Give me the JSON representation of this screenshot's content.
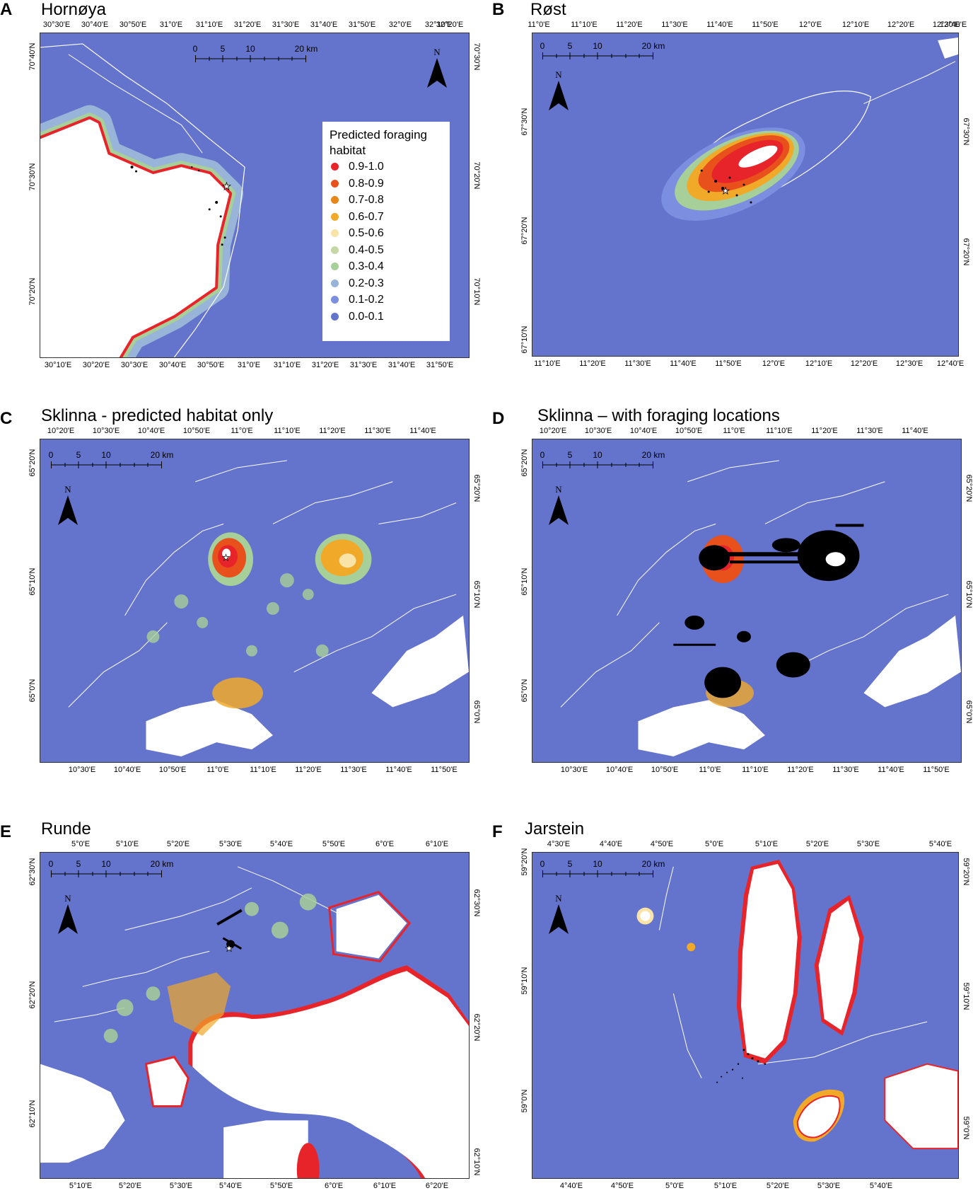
{
  "legend": {
    "title": "Predicted foraging habitat",
    "items": [
      {
        "label": "0.9-1.0",
        "color": "#e8242b"
      },
      {
        "label": "0.8-0.9",
        "color": "#e8501c"
      },
      {
        "label": "0.7-0.8",
        "color": "#e8861a"
      },
      {
        "label": "0.6-0.7",
        "color": "#f0a929"
      },
      {
        "label": "0.5-0.6",
        "color": "#fae3a6"
      },
      {
        "label": "0.4-0.5",
        "color": "#c6d8a6"
      },
      {
        "label": "0.3-0.4",
        "color": "#a7cf99"
      },
      {
        "label": "0.2-0.3",
        "color": "#98b4d8"
      },
      {
        "label": "0.1-0.2",
        "color": "#7b8ee0"
      },
      {
        "label": "0.0-0.1",
        "color": "#6474cc"
      }
    ]
  },
  "scalebar_labels": [
    "0",
    "5",
    "10",
    "20 km"
  ],
  "north_label": "N",
  "colors": {
    "sea": "#6474cc",
    "land": "#ffffff",
    "locations": "#000000"
  },
  "panels": [
    {
      "letter": "A",
      "title": "Hornøya",
      "top_ticks": [
        "30°30'E",
        "30°40'E",
        "30°50'E",
        "31°0'E",
        "31°10'E",
        "31°20'E",
        "31°30'E",
        "31°40'E",
        "31°50'E",
        "32°0'E",
        "32°10'E",
        "32°20'E"
      ],
      "bottom_ticks": [
        "30°10'E",
        "30°20'E",
        "30°30'E",
        "30°40'E",
        "30°50'E",
        "31°0'E",
        "31°10'E",
        "31°20'E",
        "31°30'E",
        "31°40'E",
        "31°50'E"
      ],
      "left_ticks": [
        "70°40'N",
        "70°30'N",
        "70°20'N"
      ],
      "right_ticks": [
        "70°30'N",
        "70°20'N",
        "70°10'N"
      ]
    },
    {
      "letter": "B",
      "title": "Røst",
      "top_ticks": [
        "11°0'E",
        "11°10'E",
        "11°20'E",
        "11°30'E",
        "11°40'E",
        "11°50'E",
        "12°0'E",
        "12°10'E",
        "12°20'E",
        "12°30'E",
        "12°40'E"
      ],
      "bottom_ticks": [
        "11°10'E",
        "11°20'E",
        "11°30'E",
        "11°40'E",
        "11°50'E",
        "12°0'E",
        "12°10'E",
        "12°20'E",
        "12°30'E",
        "12°40'E"
      ],
      "left_ticks": [
        "67°30'N",
        "67°20'N",
        "67°10'N"
      ],
      "right_ticks": [
        "67°30'N",
        "67°20'N"
      ]
    },
    {
      "letter": "C",
      "title": "Sklinna - predicted habitat only",
      "top_ticks": [
        "10°20'E",
        "10°30'E",
        "10°40'E",
        "10°50'E",
        "11°0'E",
        "11°10'E",
        "11°20'E",
        "11°30'E",
        "11°40'E"
      ],
      "bottom_ticks": [
        "10°30'E",
        "10°40'E",
        "10°50'E",
        "11°0'E",
        "11°10'E",
        "11°20'E",
        "11°30'E",
        "11°40'E",
        "11°50'E"
      ],
      "left_ticks": [
        "65°20'N",
        "65°10'N",
        "65°0'N"
      ],
      "right_ticks": [
        "65°20'N",
        "65°10'N",
        "65°0'N"
      ]
    },
    {
      "letter": "D",
      "title": "Sklinna – with foraging locations",
      "top_ticks": [
        "10°20'E",
        "10°30'E",
        "10°40'E",
        "10°50'E",
        "11°0'E",
        "11°10'E",
        "11°20'E",
        "11°30'E",
        "11°40'E"
      ],
      "bottom_ticks": [
        "10°30'E",
        "10°40'E",
        "10°50'E",
        "11°0'E",
        "11°10'E",
        "11°20'E",
        "11°30'E",
        "11°40'E",
        "11°50'E"
      ],
      "left_ticks": [
        "65°20'N",
        "65°10'N",
        "65°0'N"
      ],
      "right_ticks": [
        "65°20'N",
        "65°10'N",
        "65°0'N"
      ]
    },
    {
      "letter": "E",
      "title": "Runde",
      "top_ticks": [
        "5°0'E",
        "5°10'E",
        "5°20'E",
        "5°30'E",
        "5°40'E",
        "5°50'E",
        "6°0'E",
        "6°10'E"
      ],
      "bottom_ticks": [
        "5°10'E",
        "5°20'E",
        "5°30'E",
        "5°40'E",
        "5°50'E",
        "6°0'E",
        "6°10'E",
        "6°20'E"
      ],
      "left_ticks": [
        "62°30'N",
        "62°20'N",
        "62°10'N"
      ],
      "right_ticks": [
        "62°30'N",
        "62°20'N",
        "62°10'N"
      ]
    },
    {
      "letter": "F",
      "title": "Jarstein",
      "top_ticks": [
        "4°30'E",
        "4°40'E",
        "4°50'E",
        "5°0'E",
        "5°10'E",
        "5°20'E",
        "5°30'E",
        "5°40'E"
      ],
      "bottom_ticks": [
        "4°40'E",
        "4°50'E",
        "5°0'E",
        "5°10'E",
        "5°20'E",
        "5°30'E",
        "5°40'E"
      ],
      "left_ticks": [
        "59°20'N",
        "59°10'N",
        "59°0'N"
      ],
      "right_ticks": [
        "59°20'N",
        "59°10'N",
        "59°0'N"
      ]
    }
  ]
}
